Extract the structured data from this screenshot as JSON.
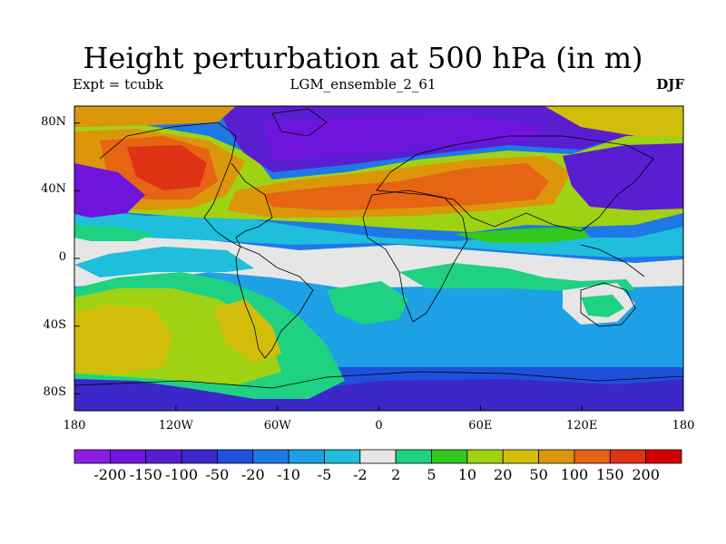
{
  "title": "Height perturbation at 500 hPa (in m)",
  "subtitle_left": "Expt = tcubk",
  "subtitle_center": "LGM_ensemble_2_61",
  "subtitle_right": "DJF",
  "lat_labels": [
    {
      "text": "80N",
      "lat": 80
    },
    {
      "text": "40N",
      "lat": 40
    },
    {
      "text": "0",
      "lat": 0
    },
    {
      "text": "40S",
      "lat": -40
    },
    {
      "text": "80S",
      "lat": -80
    }
  ],
  "lon_labels": [
    {
      "text": "180",
      "lon": -180
    },
    {
      "text": "120W",
      "lon": -120
    },
    {
      "text": "60W",
      "lon": -60
    },
    {
      "text": "0",
      "lon": 0
    },
    {
      "text": "60E",
      "lon": 60
    },
    {
      "text": "120E",
      "lon": 120
    },
    {
      "text": "180",
      "lon": 180
    }
  ],
  "colorbar": {
    "colors": [
      "#8a1ee6",
      "#6f14dc",
      "#5a1ed2",
      "#3c28c8",
      "#1e50dc",
      "#1e78e6",
      "#1ea0e6",
      "#1ebedc",
      "#e6e6e6",
      "#1ed282",
      "#32c81e",
      "#a0d214",
      "#d2be0a",
      "#dc960a",
      "#e66414",
      "#e03214",
      "#d20000"
    ],
    "labels": [
      "-200",
      "-150",
      "-100",
      "-50",
      "-20",
      "-10",
      "-5",
      "-2",
      "2",
      "5",
      "10",
      "20",
      "50",
      "100",
      "150",
      "200"
    ]
  },
  "map_colors": {
    "ocean_bg": "#1e78e6",
    "land_outline": "#000000"
  }
}
